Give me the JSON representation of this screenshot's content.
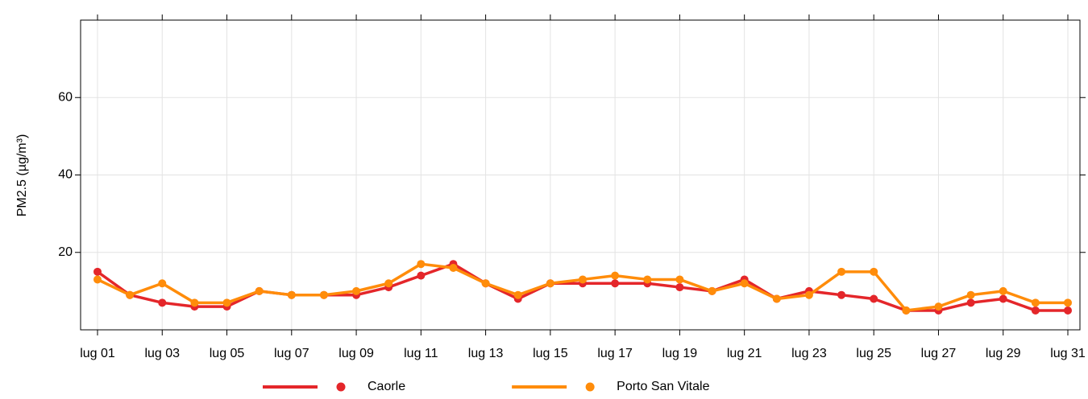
{
  "chart_data": {
    "type": "line",
    "y_label": "PM2.5 (µg/m³)",
    "categories": [
      "lug 01",
      null,
      "lug 03",
      null,
      "lug 05",
      null,
      "lug 07",
      null,
      "lug 09",
      null,
      "lug 11",
      null,
      "lug 13",
      null,
      "lug 15",
      null,
      "lug 17",
      null,
      "lug 19",
      null,
      "lug 21",
      null,
      "lug 23",
      null,
      "lug 25",
      null,
      "lug 27",
      null,
      "lug 29",
      null,
      "lug 31"
    ],
    "series": [
      {
        "name": "Caorle",
        "color": "#e4262a",
        "values": [
          15,
          9,
          7,
          6,
          6,
          10,
          9,
          9,
          9,
          11,
          14,
          17,
          12,
          8,
          12,
          12,
          12,
          12,
          11,
          10,
          13,
          8,
          10,
          9,
          8,
          5,
          5,
          7,
          8,
          5,
          5
        ]
      },
      {
        "name": "Porto San Vitale",
        "color": "#ff8c0a",
        "values": [
          13,
          9,
          12,
          7,
          7,
          10,
          9,
          9,
          10,
          12,
          17,
          16,
          12,
          9,
          12,
          13,
          14,
          13,
          13,
          10,
          12,
          8,
          9,
          15,
          15,
          5,
          6,
          9,
          10,
          7,
          7
        ]
      }
    ],
    "ylim": [
      0,
      80
    ],
    "yticks": [
      20,
      40,
      60
    ],
    "grid": true,
    "legend": "bottom"
  }
}
